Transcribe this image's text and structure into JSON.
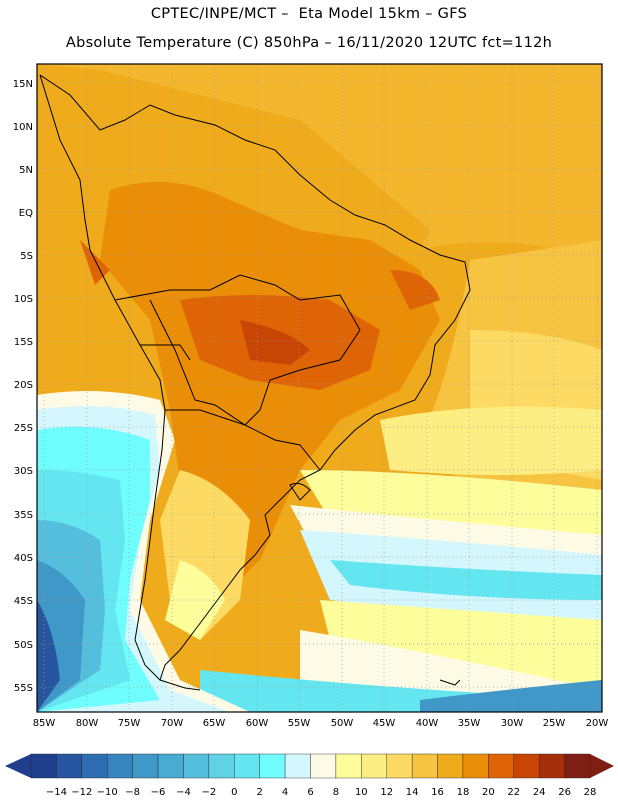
{
  "header": {
    "line1": "CPTEC/INPE/MCT –  Eta Model 15km – GFS",
    "line2": "Absolute Temperature (C) 850hPa – 16/11/2020 12UTC fct=112h"
  },
  "map": {
    "lat_labels": [
      "15N",
      "10N",
      "5N",
      "EQ",
      "5S",
      "10S",
      "15S",
      "20S",
      "25S",
      "30S",
      "35S",
      "40S",
      "45S",
      "50S",
      "55S"
    ],
    "lon_labels": [
      "85W",
      "80W",
      "75W",
      "70W",
      "65W",
      "60W",
      "55W",
      "50W",
      "45W",
      "40W",
      "35W",
      "30W",
      "25W",
      "20W"
    ]
  },
  "legend": {
    "labels": [
      "-14",
      "-12",
      "-10",
      "-8",
      "-6",
      "-4",
      "-2",
      "0",
      "2",
      "4",
      "6",
      "8",
      "10",
      "12",
      "14",
      "16",
      "18",
      "20",
      "22",
      "24",
      "26",
      "28"
    ],
    "colors": [
      "#1f3f8c",
      "#27559f",
      "#2e6db1",
      "#3784be",
      "#3f98c8",
      "#49abd3",
      "#55bedd",
      "#5fd2e6",
      "#63e6ef",
      "#6ffdfd",
      "#d4f6fd",
      "#fdfbe6",
      "#fdfd9b",
      "#fdee83",
      "#fdda63",
      "#f7c442",
      "#f0ab1d",
      "#ea8e07",
      "#df6405",
      "#c84505",
      "#a52e0b",
      "#7f1e12"
    ]
  }
}
